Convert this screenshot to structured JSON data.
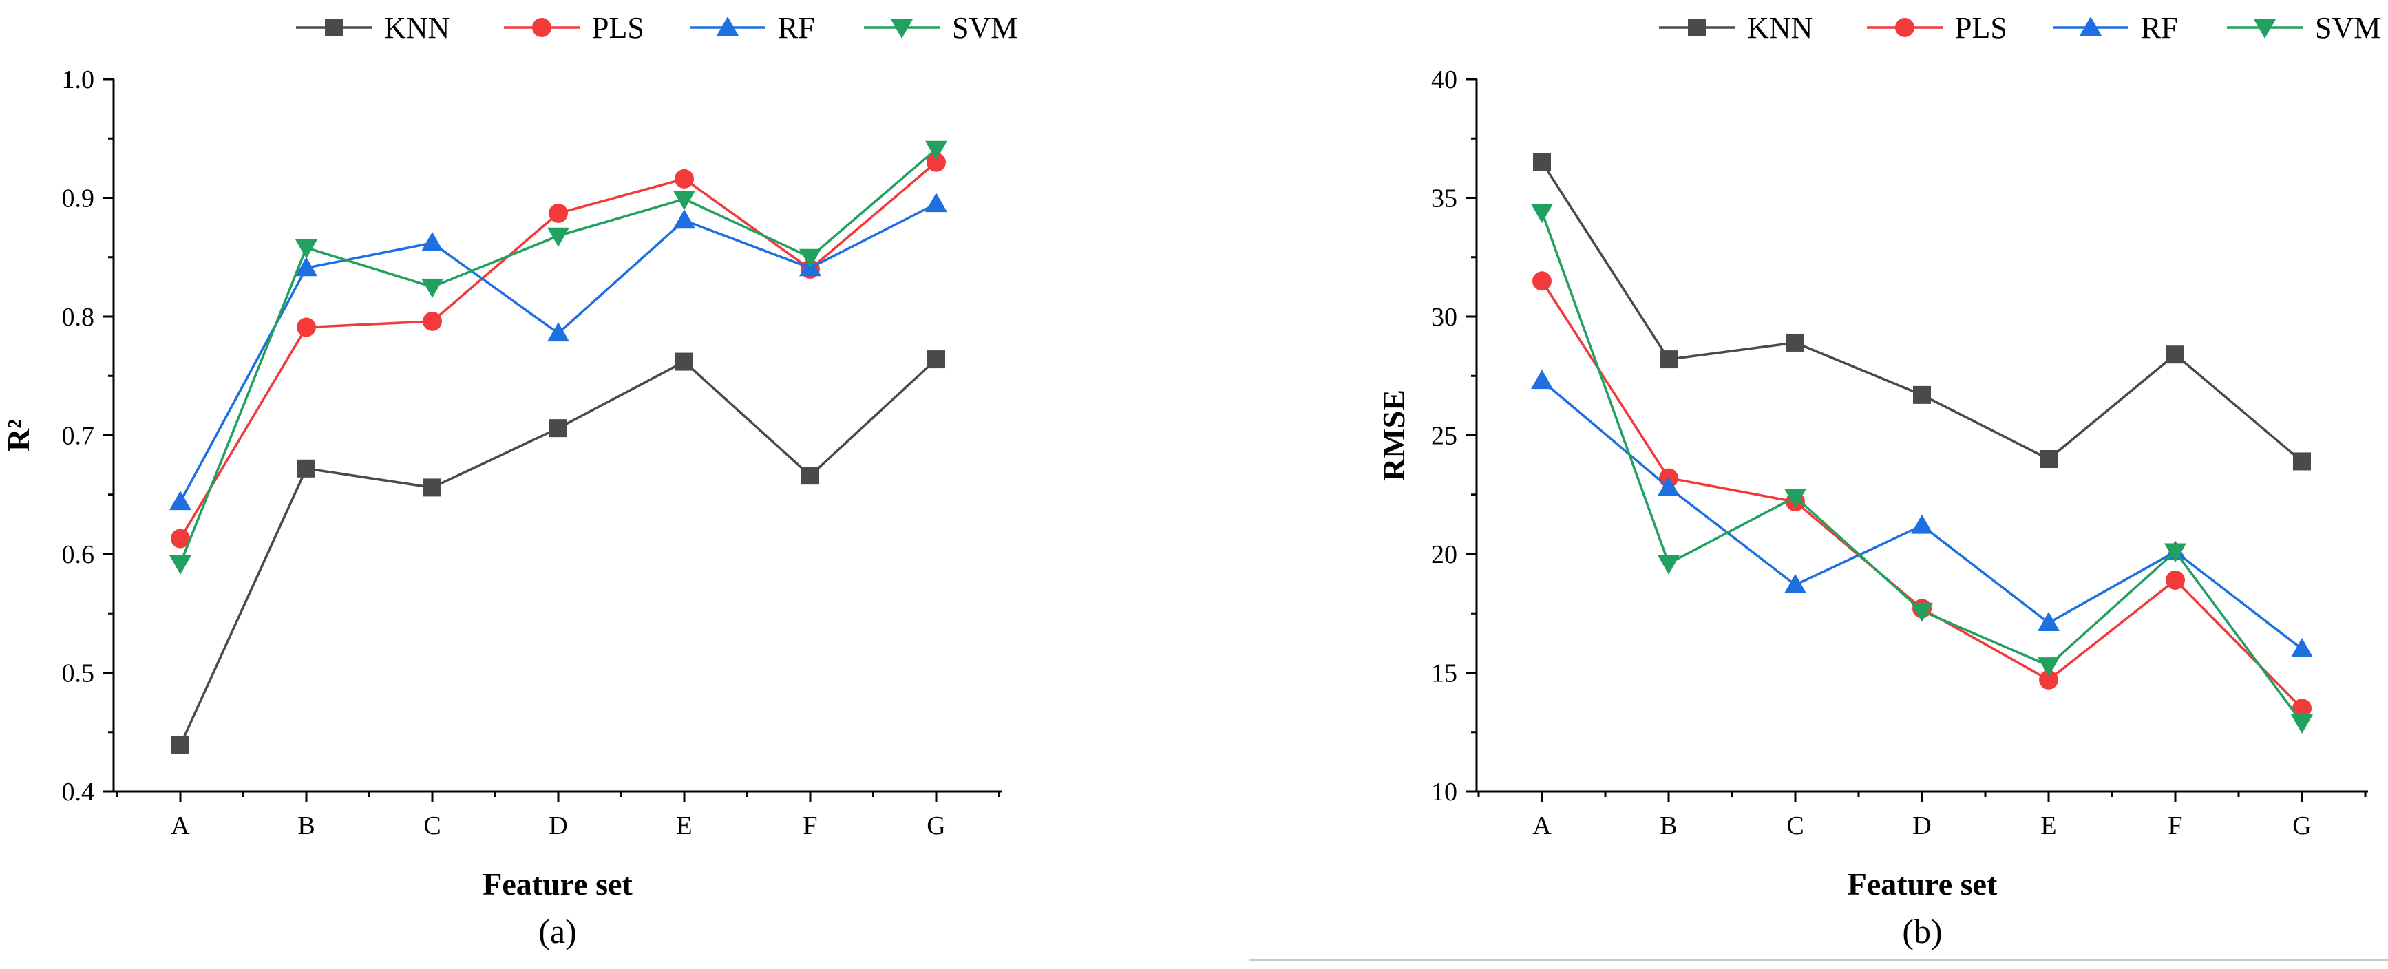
{
  "colors": {
    "KNN": "#4a4a4a",
    "PLS": "#f23a3a",
    "RF": "#1e6fe0",
    "SVM": "#22a060"
  },
  "markers": {
    "KNN": "square",
    "PLS": "circle",
    "RF": "triangle-up",
    "SVM": "triangle-down"
  },
  "chart_data": [
    {
      "type": "line",
      "panel_label": "(a)",
      "xlabel": "Feature set",
      "ylabel": "R²",
      "categories": [
        "A",
        "B",
        "C",
        "D",
        "E",
        "F",
        "G"
      ],
      "ylim": [
        0.4,
        1.0
      ],
      "yticks": [
        "0.4",
        "0.5",
        "0.6",
        "0.7",
        "0.8",
        "0.9",
        "1.0"
      ],
      "ytick_values": [
        0.4,
        0.5,
        0.6,
        0.7,
        0.8,
        0.9,
        1.0
      ],
      "legend": {
        "placement": "top-right",
        "entries": [
          "KNN",
          "PLS",
          "RF",
          "SVM"
        ]
      },
      "series": [
        {
          "name": "KNN",
          "values": [
            0.439,
            0.672,
            0.656,
            0.706,
            0.762,
            0.666,
            0.764
          ]
        },
        {
          "name": "PLS",
          "values": [
            0.613,
            0.791,
            0.796,
            0.887,
            0.916,
            0.84,
            0.93
          ]
        },
        {
          "name": "RF",
          "values": [
            0.644,
            0.841,
            0.862,
            0.786,
            0.881,
            0.841,
            0.895
          ]
        },
        {
          "name": "SVM",
          "values": [
            0.592,
            0.858,
            0.825,
            0.868,
            0.899,
            0.85,
            0.941
          ]
        }
      ]
    },
    {
      "type": "line",
      "panel_label": "(b)",
      "xlabel": "Feature set",
      "ylabel": "RMSE",
      "categories": [
        "A",
        "B",
        "C",
        "D",
        "E",
        "F",
        "G"
      ],
      "ylim": [
        10,
        40
      ],
      "yticks": [
        "10",
        "15",
        "20",
        "25",
        "30",
        "35",
        "40"
      ],
      "ytick_values": [
        10,
        15,
        20,
        25,
        30,
        35,
        40
      ],
      "legend": {
        "placement": "top-right",
        "entries": [
          "KNN",
          "PLS",
          "RF",
          "SVM"
        ]
      },
      "series": [
        {
          "name": "KNN",
          "values": [
            36.5,
            28.2,
            28.9,
            26.7,
            24.0,
            28.4,
            23.9
          ]
        },
        {
          "name": "PLS",
          "values": [
            31.5,
            23.2,
            22.2,
            17.7,
            14.7,
            18.9,
            13.5
          ]
        },
        {
          "name": "RF",
          "values": [
            27.3,
            22.8,
            18.7,
            21.2,
            17.1,
            20.1,
            16.0
          ]
        },
        {
          "name": "SVM",
          "values": [
            34.4,
            19.6,
            22.4,
            17.6,
            15.3,
            20.1,
            12.9
          ]
        }
      ]
    }
  ]
}
